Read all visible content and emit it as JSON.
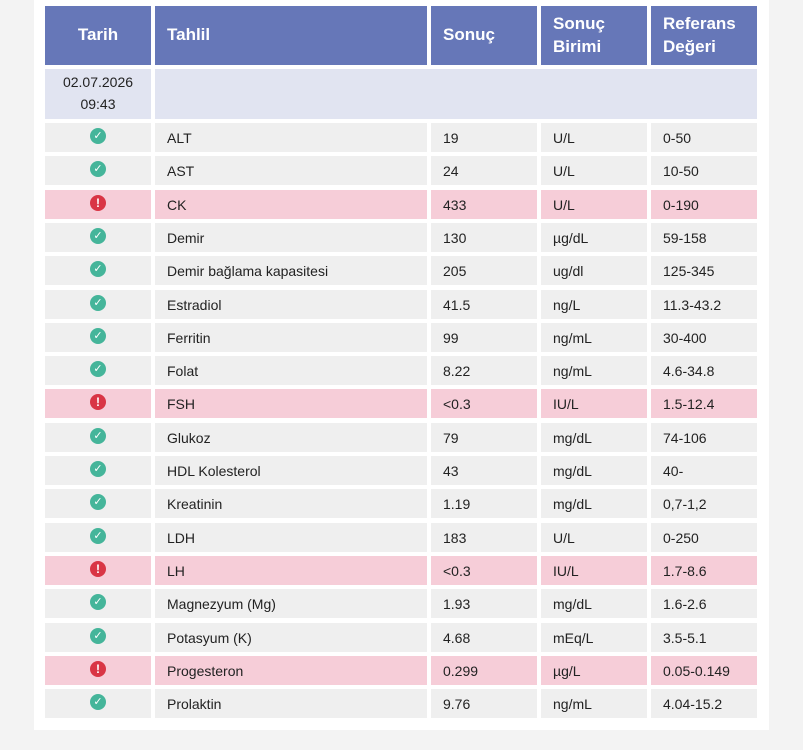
{
  "header": {
    "col_date": "Tarih",
    "col_test": "Tahlil",
    "col_result": "Sonuç",
    "col_unit_line1": "Sonuç",
    "col_unit_line2": "Birimi",
    "col_ref_line1": "Referans",
    "col_ref_line2": "Değeri"
  },
  "date_group": {
    "date": "02.07.2026",
    "time": "09:43"
  },
  "status_colors": {
    "normal": "#45b59a",
    "abnormal": "#d93545"
  },
  "rows": [
    {
      "status": "normal",
      "icon": "check-circle-icon",
      "test": "ALT",
      "result": "19",
      "unit": "U/L",
      "reference": "0-50"
    },
    {
      "status": "normal",
      "icon": "check-circle-icon",
      "test": "AST",
      "result": "24",
      "unit": "U/L",
      "reference": "10-50"
    },
    {
      "status": "abnormal",
      "icon": "exclamation-circle-icon",
      "test": "CK",
      "result": "433",
      "unit": "U/L",
      "reference": "0-190"
    },
    {
      "status": "normal",
      "icon": "check-circle-icon",
      "test": "Demir",
      "result": "130",
      "unit": "µg/dL",
      "reference": "59-158"
    },
    {
      "status": "normal",
      "icon": "check-circle-icon",
      "test": "Demir bağlama kapasitesi",
      "result": "205",
      "unit": "ug/dl",
      "reference": "125-345"
    },
    {
      "status": "normal",
      "icon": "check-circle-icon",
      "test": "Estradiol",
      "result": "41.5",
      "unit": "ng/L",
      "reference": "11.3-43.2"
    },
    {
      "status": "normal",
      "icon": "check-circle-icon",
      "test": "Ferritin",
      "result": "99",
      "unit": "ng/mL",
      "reference": "30-400"
    },
    {
      "status": "normal",
      "icon": "check-circle-icon",
      "test": "Folat",
      "result": "8.22",
      "unit": "ng/mL",
      "reference": "4.6-34.8"
    },
    {
      "status": "abnormal",
      "icon": "exclamation-circle-icon",
      "test": "FSH",
      "result": "<0.3",
      "unit": "IU/L",
      "reference": "1.5-12.4"
    },
    {
      "status": "normal",
      "icon": "check-circle-icon",
      "test": "Glukoz",
      "result": "79",
      "unit": "mg/dL",
      "reference": "74-106"
    },
    {
      "status": "normal",
      "icon": "check-circle-icon",
      "test": "HDL Kolesterol",
      "result": "43",
      "unit": "mg/dL",
      "reference": "40-"
    },
    {
      "status": "normal",
      "icon": "check-circle-icon",
      "test": "Kreatinin",
      "result": "1.19",
      "unit": "mg/dL",
      "reference": "0,7-1,2"
    },
    {
      "status": "normal",
      "icon": "check-circle-icon",
      "test": "LDH",
      "result": "183",
      "unit": "U/L",
      "reference": "0-250"
    },
    {
      "status": "abnormal",
      "icon": "exclamation-circle-icon",
      "test": "LH",
      "result": "<0.3",
      "unit": "IU/L",
      "reference": "1.7-8.6"
    },
    {
      "status": "normal",
      "icon": "check-circle-icon",
      "test": "Magnezyum (Mg)",
      "result": "1.93",
      "unit": "mg/dL",
      "reference": "1.6-2.6"
    },
    {
      "status": "normal",
      "icon": "check-circle-icon",
      "test": "Potasyum (K)",
      "result": "4.68",
      "unit": "mEq/L",
      "reference": "3.5-5.1"
    },
    {
      "status": "abnormal",
      "icon": "exclamation-circle-icon",
      "test": "Progesteron",
      "result": "0.299",
      "unit": "µg/L",
      "reference": "0.05-0.149"
    },
    {
      "status": "normal",
      "icon": "check-circle-icon",
      "test": "Prolaktin",
      "result": "9.76",
      "unit": "ng/mL",
      "reference": "4.04-15.2"
    }
  ]
}
